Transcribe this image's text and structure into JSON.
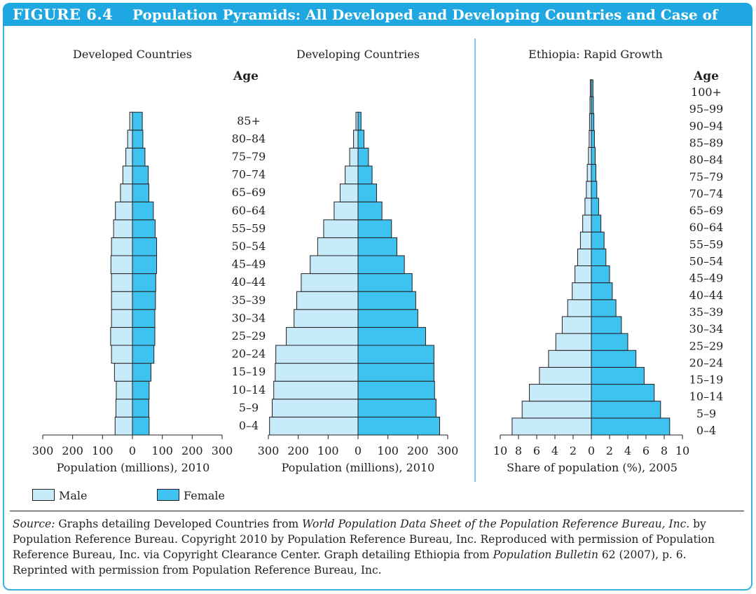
{
  "figure": {
    "label": "FIGURE 6.4",
    "title": "Population Pyramids: All Developed and Developing Countries and Case of Ethiopia"
  },
  "colors": {
    "male": "#c8ebfa",
    "female": "#3ec2f0",
    "accent": "#1ea7e1",
    "stroke": "#231f20"
  },
  "legend": {
    "male": "Male",
    "female": "Female"
  },
  "source": {
    "label": "Source:",
    "text1": " Graphs detailing Developed Countries from ",
    "italic1": "World Population Data Sheet of the Population Reference Bureau, Inc.",
    "text2": " by Population Reference Bureau. Copyright 2010 by Population Reference Bureau, Inc. Reproduced with permission of Population Reference Bureau, Inc. via Copyright Clearance Center. Graph detailing Ethiopia from ",
    "italic2": "Population Bulletin",
    "text3": " 62 (2007), p. 6. Reprinted with permission from Population Reference Bureau, Inc."
  },
  "chart_data": [
    {
      "type": "bar",
      "subtype": "population-pyramid",
      "title": "Developed Countries",
      "xlabel": "Population (millions), 2010",
      "ylabel": "Age",
      "xlim": [
        -300,
        300
      ],
      "xticks": [
        "300",
        "200",
        "100",
        "0",
        "100",
        "200",
        "300"
      ],
      "categories": [
        "0–4",
        "5–9",
        "10–14",
        "15–19",
        "20–24",
        "25–29",
        "30–34",
        "35–39",
        "40–44",
        "45–49",
        "50–54",
        "55–59",
        "60–64",
        "65–69",
        "70–74",
        "75–79",
        "80–84",
        "85+"
      ],
      "series": [
        {
          "name": "Male",
          "values": [
            58,
            55,
            54,
            60,
            70,
            73,
            70,
            70,
            70,
            72,
            70,
            63,
            57,
            40,
            32,
            22,
            16,
            9
          ]
        },
        {
          "name": "Female",
          "values": [
            56,
            55,
            56,
            62,
            72,
            75,
            75,
            77,
            78,
            81,
            81,
            76,
            70,
            55,
            53,
            42,
            35,
            33
          ]
        }
      ]
    },
    {
      "type": "bar",
      "subtype": "population-pyramid",
      "title": "Developing Countries",
      "xlabel": "Population (millions), 2010",
      "xlim": [
        -300,
        300
      ],
      "xticks": [
        "300",
        "200",
        "100",
        "0",
        "100",
        "200",
        "300"
      ],
      "categories": [
        "0–4",
        "5–9",
        "10–14",
        "15–19",
        "20–24",
        "25–29",
        "30–34",
        "35–39",
        "40–44",
        "45–49",
        "50–54",
        "55–59",
        "60–64",
        "65–69",
        "70–74",
        "75–79",
        "80–84",
        "85+"
      ],
      "series": [
        {
          "name": "Male",
          "values": [
            296,
            287,
            282,
            277,
            275,
            240,
            214,
            205,
            190,
            160,
            135,
            115,
            80,
            60,
            43,
            28,
            15,
            7
          ]
        },
        {
          "name": "Female",
          "values": [
            273,
            261,
            256,
            254,
            254,
            226,
            200,
            193,
            181,
            155,
            130,
            112,
            80,
            62,
            47,
            35,
            20,
            10
          ]
        }
      ]
    },
    {
      "type": "bar",
      "subtype": "population-pyramid",
      "title": "Ethiopia: Rapid Growth",
      "xlabel": "Share of population (%), 2005",
      "ylabel": "Age",
      "xlim": [
        -10,
        10
      ],
      "xticks": [
        "10",
        "8",
        "6",
        "4",
        "2",
        "0",
        "2",
        "4",
        "6",
        "8",
        "10"
      ],
      "categories": [
        "0–4",
        "5–9",
        "10–14",
        "15–19",
        "20–24",
        "25–29",
        "30–34",
        "35–39",
        "40–44",
        "45–49",
        "50–54",
        "55–59",
        "60–64",
        "65–69",
        "70–74",
        "75–79",
        "80–84",
        "85–89",
        "90–94",
        "95–99",
        "100+"
      ],
      "series": [
        {
          "name": "Male",
          "values": [
            8.7,
            7.6,
            6.8,
            5.7,
            4.7,
            3.9,
            3.2,
            2.6,
            2.1,
            1.8,
            1.5,
            1.2,
            0.95,
            0.7,
            0.55,
            0.45,
            0.32,
            0.24,
            0.2,
            0.15,
            0.12
          ]
        },
        {
          "name": "Female",
          "values": [
            8.6,
            7.6,
            6.9,
            5.8,
            4.9,
            4.0,
            3.3,
            2.7,
            2.3,
            2.0,
            1.6,
            1.4,
            1.05,
            0.8,
            0.6,
            0.5,
            0.42,
            0.34,
            0.28,
            0.22,
            0.18
          ]
        }
      ]
    }
  ]
}
